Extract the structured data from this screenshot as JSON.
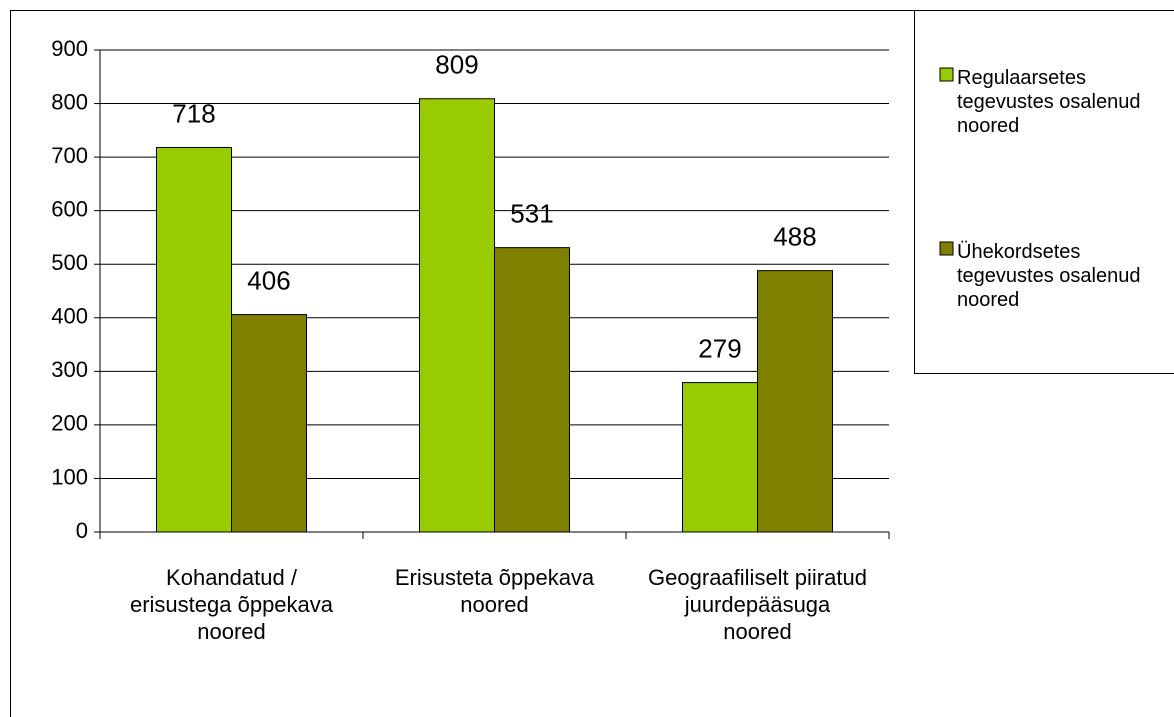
{
  "chart_data": {
    "type": "bar",
    "categories": [
      "Kohandatud / erisustega õppekava noored",
      "Erisusteta õppekava noored",
      "Geograafiliselt piiratud juurdepääsuga noored"
    ],
    "series": [
      {
        "name": "Regulaarsetes tegevustes osalenud noored",
        "color": "#99cc00",
        "values": [
          718,
          809,
          279
        ]
      },
      {
        "name": "Ühekordsetes tegevustes osalenud noored",
        "color": "#808000",
        "values": [
          406,
          531,
          488
        ]
      }
    ],
    "ylim": [
      0,
      900
    ],
    "yticks": [
      0,
      100,
      200,
      300,
      400,
      500,
      600,
      700,
      800,
      900
    ],
    "grid": true,
    "legend": "right"
  }
}
